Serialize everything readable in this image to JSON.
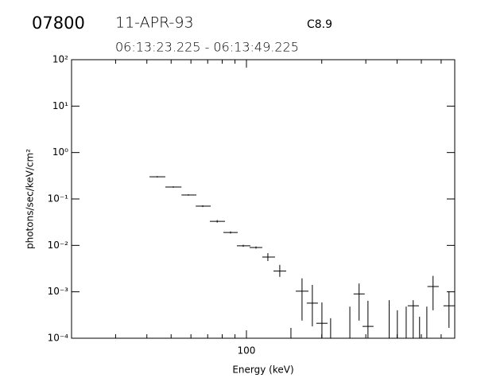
{
  "chart_data": {
    "type": "errorbar",
    "header": {
      "id": "07800",
      "date": "11-APR-93",
      "class": "C8.9",
      "interval": "06:13:23.225 - 06:13:49.225"
    },
    "xlabel": "Energy (keV)",
    "ylabel": "photons/sec/keV/cm²",
    "xscale": "log",
    "yscale": "log",
    "xlim": [
      20,
      680
    ],
    "ylim": [
      0.0001,
      100
    ],
    "xticks": [
      100
    ],
    "xminor": [
      30,
      40,
      50,
      60,
      70,
      80,
      90,
      200,
      300,
      400,
      500,
      600
    ],
    "yticks": [
      {
        "value": 100,
        "label": "10²"
      },
      {
        "value": 10,
        "label": "10¹"
      },
      {
        "value": 1,
        "label": "10⁰"
      },
      {
        "value": 0.1,
        "label": "10⁻¹"
      },
      {
        "value": 0.01,
        "label": "10⁻²"
      },
      {
        "value": 0.001,
        "label": "10⁻³"
      },
      {
        "value": 0.0001,
        "label": "10⁻⁴"
      }
    ],
    "color": "#000000",
    "points": {
      "x": [
        44.0,
        51.0,
        58.6,
        66.9,
        76.4,
        86.4,
        97.1,
        109.2,
        121.8,
        135.9,
        166.8,
        183.4,
        200.3,
        282,
        306,
        464,
        557,
        645
      ],
      "x_low": [
        41.0,
        47.4,
        55.0,
        62.7,
        71.4,
        80.9,
        91.6,
        103,
        115.7,
        128.2,
        157.4,
        174.2,
        190.2,
        268,
        291,
        441,
        529,
        613
      ],
      "x_high": [
        47.4,
        55.0,
        63.1,
        72.0,
        82.1,
        92.3,
        103.7,
        115.7,
        130.1,
        144.2,
        177,
        193.1,
        210.8,
        297,
        322,
        489,
        587,
        680
      ],
      "values": [
        0.3,
        0.181,
        0.122,
        0.07,
        0.033,
        0.019,
        0.0098,
        0.009,
        0.0056,
        0.0028,
        0.00103,
        0.00057,
        0.00021,
        0.0009,
        0.00018,
        0.0005,
        0.0013,
        0.0005
      ],
      "y_low": [
        0.29,
        0.175,
        0.118,
        0.067,
        0.031,
        0.018,
        0.0093,
        0.0085,
        0.0046,
        0.0021,
        0.00024,
        0.00018,
        0.0001,
        0.00024,
        0.0001,
        0.0001,
        0.0004,
        0.000167
      ],
      "y_high": [
        0.31,
        0.187,
        0.126,
        0.073,
        0.035,
        0.02,
        0.0103,
        0.0095,
        0.0068,
        0.0038,
        0.00195,
        0.00141,
        0.00059,
        0.00151,
        0.00064,
        0.00066,
        0.0022,
        0.00102
      ]
    },
    "limits": {
      "x": [
        150.6,
        217,
        259,
        372,
        401,
        435,
        492,
        526
      ],
      "y_high": [
        0.000167,
        0.00027,
        0.00048,
        0.00066,
        0.0004,
        0.00048,
        0.00029,
        0.00048
      ]
    }
  }
}
